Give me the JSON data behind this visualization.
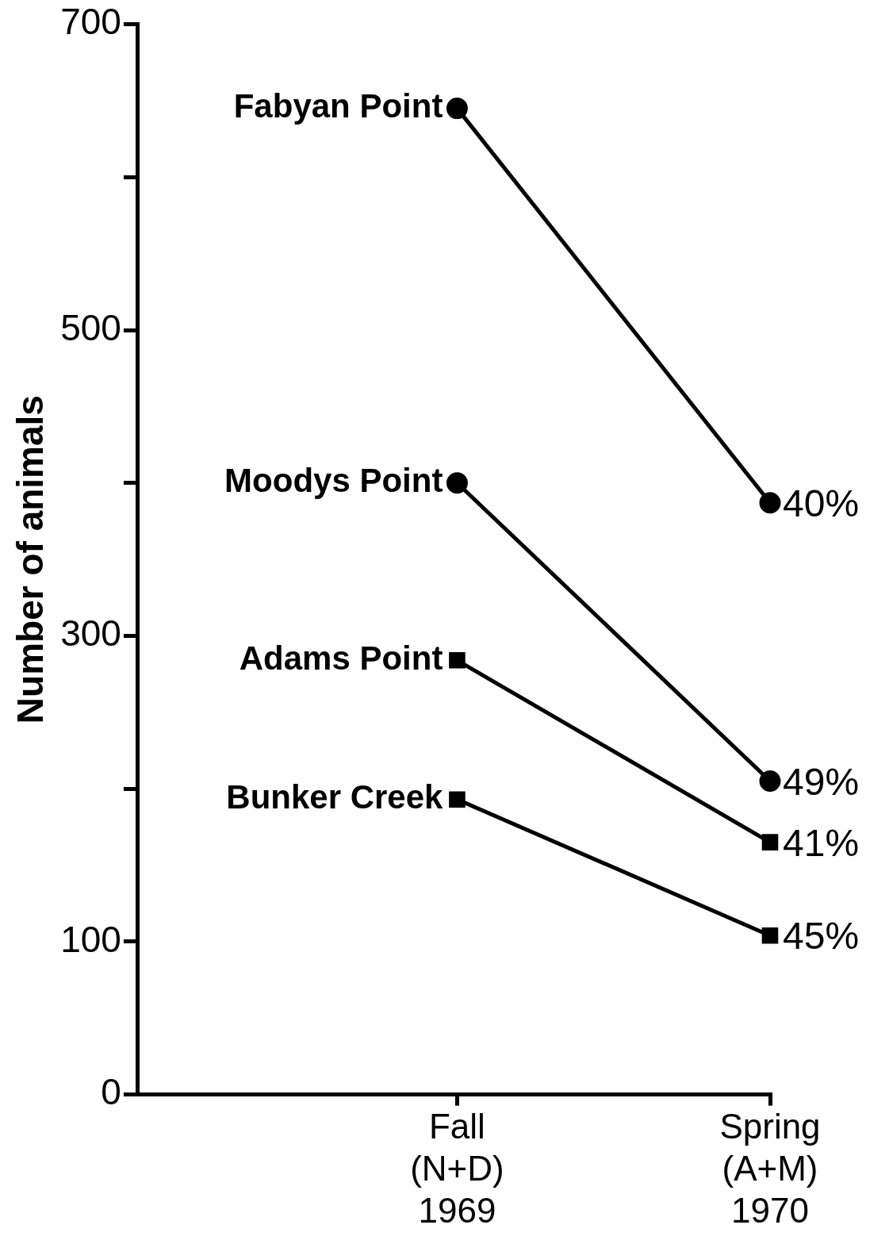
{
  "chart_data": {
    "type": "line",
    "ylabel": "Number of animals",
    "categories": [
      "Fall\n(N+D)\n1969",
      "Spring\n(A+M)\n1970"
    ],
    "ylim": [
      0,
      700
    ],
    "yticks": [
      0,
      100,
      {
        "value": 200,
        "label": null
      },
      300,
      {
        "value": 400,
        "label": null
      },
      500,
      {
        "value": 600,
        "label": null
      },
      700
    ],
    "grid": false,
    "legend": false,
    "series": [
      {
        "name": "Fabyan Point",
        "color": "#000000",
        "marker": "circle",
        "values": [
          645,
          387
        ]
      },
      {
        "name": "Moodys Point",
        "color": "#000000",
        "marker": "circle",
        "values": [
          400,
          205
        ]
      },
      {
        "name": "Adams Point",
        "color": "#000000",
        "marker": "square",
        "values": [
          284,
          165
        ]
      },
      {
        "name": "Bunker Creek",
        "color": "#000000",
        "marker": "square",
        "values": [
          193,
          104
        ]
      }
    ],
    "annotations": [
      {
        "text": "40%",
        "x": "Spring\n(A+M)\n1970",
        "y": 387
      },
      {
        "text": "49%",
        "x": "Spring\n(A+M)\n1970",
        "y": 205
      },
      {
        "text": "41%",
        "x": "Spring\n(A+M)\n1970",
        "y": 165
      },
      {
        "text": "45%",
        "x": "Spring\n(A+M)\n1970",
        "y": 104
      }
    ]
  }
}
